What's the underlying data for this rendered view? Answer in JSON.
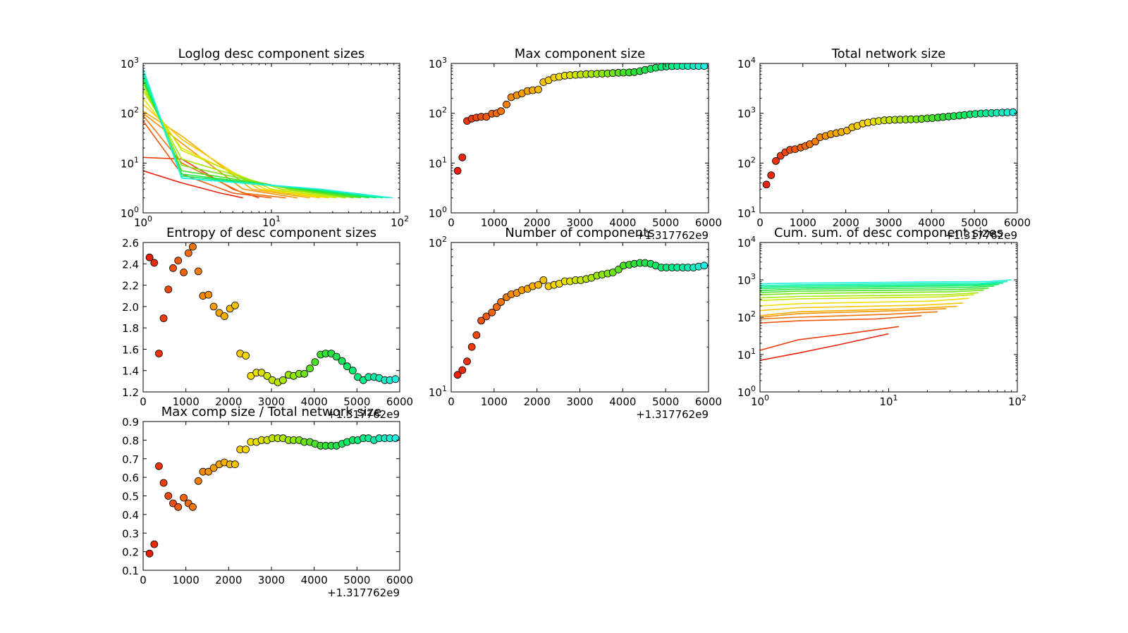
{
  "figure": {
    "offset_text": "+1.317762e9",
    "colors": {
      "ramp": [
        "#e8200c",
        "#f06010",
        "#f8a000",
        "#f6e000",
        "#a0e800",
        "#30e030",
        "#00f080",
        "#20f0e0"
      ],
      "axes": "#000000",
      "background": "#ffffff"
    }
  },
  "chart_data": [
    {
      "id": "loglog",
      "type": "line",
      "title": "Loglog desc component sizes",
      "xlabel": "",
      "ylabel": "",
      "xscale": "log",
      "yscale": "log",
      "xlim": [
        1,
        100
      ],
      "ylim": [
        1,
        1000
      ],
      "x_tick_labels": [
        {
          "base": "10",
          "exp": "0"
        },
        {
          "base": "10",
          "exp": "1"
        },
        {
          "base": "10",
          "exp": "2"
        }
      ],
      "y_tick_labels": [
        {
          "base": "10",
          "exp": "0"
        },
        {
          "base": "10",
          "exp": "1"
        },
        {
          "base": "10",
          "exp": "2"
        },
        {
          "base": "10",
          "exp": "3"
        }
      ],
      "series": [
        {
          "x": [
            1,
            2,
            4,
            6
          ],
          "y": [
            7,
            4,
            2.5,
            2
          ]
        },
        {
          "x": [
            1,
            2,
            5,
            8
          ],
          "y": [
            13,
            12,
            3,
            2
          ]
        },
        {
          "x": [
            1,
            2,
            5,
            10
          ],
          "y": [
            70,
            6,
            2.5,
            2
          ]
        },
        {
          "x": [
            1,
            2,
            6,
            13
          ],
          "y": [
            90,
            10,
            2.5,
            2
          ]
        },
        {
          "x": [
            1,
            2,
            6,
            16
          ],
          "y": [
            100,
            25,
            3,
            2
          ]
        },
        {
          "x": [
            1,
            2,
            7,
            20
          ],
          "y": [
            110,
            35,
            3,
            2
          ]
        },
        {
          "x": [
            1,
            2,
            8,
            24
          ],
          "y": [
            150,
            30,
            3,
            2
          ]
        },
        {
          "x": [
            1,
            2,
            9,
            28
          ],
          "y": [
            200,
            20,
            3,
            2
          ]
        },
        {
          "x": [
            1,
            2,
            10,
            32
          ],
          "y": [
            280,
            18,
            3,
            2
          ]
        },
        {
          "x": [
            1,
            2,
            12,
            38
          ],
          "y": [
            330,
            12,
            3,
            2
          ]
        },
        {
          "x": [
            1,
            2,
            14,
            44
          ],
          "y": [
            400,
            9,
            3,
            2
          ]
        },
        {
          "x": [
            1,
            2,
            16,
            50
          ],
          "y": [
            460,
            7,
            3,
            2
          ]
        },
        {
          "x": [
            1,
            2,
            18,
            58
          ],
          "y": [
            520,
            6,
            3,
            2
          ]
        },
        {
          "x": [
            1,
            2,
            20,
            66
          ],
          "y": [
            580,
            5.5,
            3,
            2
          ]
        },
        {
          "x": [
            1,
            2,
            22,
            74
          ],
          "y": [
            640,
            5,
            3,
            2
          ]
        },
        {
          "x": [
            1,
            2,
            23,
            82
          ],
          "y": [
            700,
            5,
            3,
            2
          ]
        },
        {
          "x": [
            1,
            2,
            24,
            88
          ],
          "y": [
            780,
            5,
            3,
            2
          ]
        }
      ]
    },
    {
      "id": "maxcomp",
      "type": "scatter",
      "title": "Max component size",
      "xlabel": "",
      "ylabel": "",
      "yscale": "log",
      "xlim": [
        0,
        6000
      ],
      "ylim": [
        1,
        1000
      ],
      "x_tick_labels": [
        "0",
        "1000",
        "2000",
        "3000",
        "4000",
        "5000",
        "6000"
      ],
      "y_tick_labels": [
        {
          "base": "10",
          "exp": "0"
        },
        {
          "base": "10",
          "exp": "1"
        },
        {
          "base": "10",
          "exp": "2"
        },
        {
          "base": "10",
          "exp": "3"
        }
      ],
      "x": [
        150,
        260,
        370,
        480,
        590,
        700,
        820,
        950,
        1060,
        1160,
        1290,
        1400,
        1530,
        1650,
        1780,
        1900,
        2030,
        2150,
        2270,
        2400,
        2520,
        2650,
        2770,
        2900,
        3020,
        3150,
        3270,
        3400,
        3520,
        3650,
        3770,
        3900,
        4020,
        4150,
        4270,
        4400,
        4520,
        4650,
        4770,
        4900,
        5020,
        5150,
        5270,
        5400,
        5520,
        5650,
        5770,
        5900
      ],
      "y": [
        7,
        13,
        70,
        78,
        82,
        85,
        85,
        98,
        100,
        110,
        150,
        210,
        230,
        250,
        280,
        290,
        300,
        420,
        460,
        520,
        540,
        570,
        580,
        590,
        600,
        610,
        615,
        620,
        625,
        630,
        640,
        650,
        655,
        660,
        670,
        700,
        740,
        780,
        820,
        850,
        870,
        880,
        890,
        890,
        890,
        890,
        890,
        890
      ]
    },
    {
      "id": "totalnet",
      "type": "scatter",
      "title": "Total network size",
      "xlabel": "",
      "ylabel": "",
      "yscale": "log",
      "xlim": [
        0,
        6000
      ],
      "ylim": [
        10,
        10000
      ],
      "x_tick_labels": [
        "0",
        "1000",
        "2000",
        "3000",
        "4000",
        "5000",
        "6000"
      ],
      "y_tick_labels": [
        {
          "base": "10",
          "exp": "1"
        },
        {
          "base": "10",
          "exp": "2"
        },
        {
          "base": "10",
          "exp": "3"
        },
        {
          "base": "10",
          "exp": "4"
        }
      ],
      "x": [
        150,
        260,
        370,
        480,
        590,
        700,
        820,
        950,
        1060,
        1160,
        1290,
        1400,
        1530,
        1650,
        1780,
        1900,
        2030,
        2150,
        2270,
        2400,
        2520,
        2650,
        2770,
        2900,
        3020,
        3150,
        3270,
        3400,
        3520,
        3650,
        3770,
        3900,
        4020,
        4150,
        4270,
        4400,
        4520,
        4650,
        4770,
        4900,
        5020,
        5150,
        5270,
        5400,
        5520,
        5650,
        5770,
        5900
      ],
      "y": [
        37,
        57,
        110,
        140,
        165,
        185,
        190,
        205,
        220,
        240,
        270,
        330,
        350,
        380,
        400,
        420,
        450,
        520,
        560,
        620,
        650,
        680,
        700,
        720,
        730,
        740,
        745,
        750,
        755,
        760,
        770,
        790,
        800,
        820,
        840,
        860,
        880,
        900,
        920,
        950,
        970,
        990,
        1000,
        1010,
        1020,
        1030,
        1040,
        1050
      ]
    },
    {
      "id": "entropy",
      "type": "scatter",
      "title": "Entropy of desc component sizes",
      "xlabel": "",
      "ylabel": "",
      "xlim": [
        0,
        6000
      ],
      "ylim": [
        1.2,
        2.6
      ],
      "x_tick_labels": [
        "0",
        "1000",
        "2000",
        "3000",
        "4000",
        "5000",
        "6000"
      ],
      "y_tick_labels": [
        "1.2",
        "1.4",
        "1.6",
        "1.8",
        "2.0",
        "2.2",
        "2.4",
        "2.6"
      ],
      "x": [
        150,
        260,
        370,
        480,
        590,
        700,
        820,
        950,
        1060,
        1160,
        1290,
        1400,
        1530,
        1650,
        1780,
        1900,
        2030,
        2150,
        2270,
        2400,
        2520,
        2650,
        2770,
        2900,
        3020,
        3150,
        3270,
        3400,
        3520,
        3650,
        3770,
        3900,
        4020,
        4150,
        4270,
        4400,
        4520,
        4650,
        4770,
        4900,
        5020,
        5150,
        5270,
        5400,
        5520,
        5650,
        5770,
        5900
      ],
      "y": [
        2.46,
        2.41,
        1.56,
        1.89,
        2.16,
        2.36,
        2.43,
        2.32,
        2.5,
        2.56,
        2.33,
        2.1,
        2.11,
        2.0,
        1.94,
        1.91,
        1.98,
        2.01,
        1.56,
        1.54,
        1.35,
        1.38,
        1.38,
        1.35,
        1.31,
        1.29,
        1.31,
        1.36,
        1.35,
        1.37,
        1.37,
        1.42,
        1.48,
        1.55,
        1.56,
        1.56,
        1.53,
        1.49,
        1.44,
        1.4,
        1.34,
        1.31,
        1.34,
        1.34,
        1.33,
        1.31,
        1.31,
        1.32
      ]
    },
    {
      "id": "numcomp",
      "type": "scatter",
      "title": "Number of components",
      "xlabel": "",
      "ylabel": "",
      "yscale": "log",
      "xlim": [
        0,
        6000
      ],
      "ylim": [
        10,
        100
      ],
      "x_tick_labels": [
        "0",
        "1000",
        "2000",
        "3000",
        "4000",
        "5000",
        "6000"
      ],
      "y_tick_labels": [
        {
          "base": "10",
          "exp": "1"
        },
        {
          "base": "10",
          "exp": "2"
        }
      ],
      "x": [
        150,
        260,
        370,
        480,
        590,
        700,
        820,
        950,
        1060,
        1160,
        1290,
        1400,
        1530,
        1650,
        1780,
        1900,
        2030,
        2150,
        2270,
        2400,
        2520,
        2650,
        2770,
        2900,
        3020,
        3150,
        3270,
        3400,
        3520,
        3650,
        3770,
        3900,
        4020,
        4150,
        4270,
        4400,
        4520,
        4650,
        4770,
        4900,
        5020,
        5150,
        5270,
        5400,
        5520,
        5650,
        5770,
        5900
      ],
      "y": [
        13,
        14,
        16,
        20,
        24,
        30,
        32,
        34,
        37,
        40,
        43,
        45,
        46,
        48,
        49,
        51,
        52,
        56,
        51,
        52,
        53,
        55,
        55,
        56,
        56,
        57,
        58,
        60,
        61,
        62,
        63,
        66,
        70,
        71,
        72,
        73,
        73,
        72,
        70,
        68,
        68,
        68,
        68,
        68,
        68,
        68,
        69,
        70
      ]
    },
    {
      "id": "cumsum",
      "type": "line",
      "title": "Cum. sum. of desc component sizes",
      "xlabel": "",
      "ylabel": "",
      "xscale": "log",
      "yscale": "log",
      "xlim": [
        1,
        100
      ],
      "ylim": [
        1,
        10000
      ],
      "x_tick_labels": [
        {
          "base": "10",
          "exp": "0"
        },
        {
          "base": "10",
          "exp": "1"
        },
        {
          "base": "10",
          "exp": "2"
        }
      ],
      "y_tick_labels": [
        {
          "base": "10",
          "exp": "0"
        },
        {
          "base": "10",
          "exp": "1"
        },
        {
          "base": "10",
          "exp": "2"
        },
        {
          "base": "10",
          "exp": "3"
        },
        {
          "base": "10",
          "exp": "4"
        }
      ],
      "series": [
        {
          "x": [
            1,
            2,
            4,
            10
          ],
          "y": [
            7,
            11,
            18,
            36
          ]
        },
        {
          "x": [
            1,
            2,
            5,
            12
          ],
          "y": [
            13,
            25,
            37,
            56
          ]
        },
        {
          "x": [
            1,
            2,
            8,
            18
          ],
          "y": [
            70,
            80,
            90,
            110
          ]
        },
        {
          "x": [
            1,
            2,
            10,
            24
          ],
          "y": [
            90,
            100,
            120,
            140
          ]
        },
        {
          "x": [
            1,
            2,
            12,
            28
          ],
          "y": [
            100,
            125,
            150,
            170
          ]
        },
        {
          "x": [
            1,
            2,
            15,
            34
          ],
          "y": [
            110,
            140,
            170,
            195
          ]
        },
        {
          "x": [
            1,
            2,
            18,
            38
          ],
          "y": [
            150,
            180,
            210,
            240
          ]
        },
        {
          "x": [
            1,
            2,
            22,
            42
          ],
          "y": [
            200,
            230,
            270,
            320
          ]
        },
        {
          "x": [
            1,
            2,
            25,
            46
          ],
          "y": [
            280,
            310,
            350,
            400
          ]
        },
        {
          "x": [
            1,
            2,
            28,
            50
          ],
          "y": [
            330,
            360,
            400,
            450
          ]
        },
        {
          "x": [
            1,
            2,
            32,
            55
          ],
          "y": [
            400,
            430,
            480,
            530
          ]
        },
        {
          "x": [
            1,
            2,
            36,
            60
          ],
          "y": [
            460,
            500,
            550,
            600
          ]
        },
        {
          "x": [
            1,
            2,
            40,
            66
          ],
          "y": [
            520,
            560,
            620,
            680
          ]
        },
        {
          "x": [
            1,
            2,
            45,
            72
          ],
          "y": [
            580,
            620,
            690,
            750
          ]
        },
        {
          "x": [
            1,
            2,
            50,
            78
          ],
          "y": [
            640,
            680,
            750,
            820
          ]
        },
        {
          "x": [
            1,
            2,
            55,
            84
          ],
          "y": [
            700,
            740,
            820,
            900
          ]
        },
        {
          "x": [
            1,
            2,
            60,
            90
          ],
          "y": [
            780,
            820,
            900,
            1000
          ]
        }
      ]
    },
    {
      "id": "ratio",
      "type": "scatter",
      "title": "Max comp size / Total network size",
      "xlabel": "",
      "ylabel": "",
      "xlim": [
        0,
        6000
      ],
      "ylim": [
        0.1,
        0.9
      ],
      "x_tick_labels": [
        "0",
        "1000",
        "2000",
        "3000",
        "4000",
        "5000",
        "6000"
      ],
      "y_tick_labels": [
        "0.1",
        "0.2",
        "0.3",
        "0.4",
        "0.5",
        "0.6",
        "0.7",
        "0.8",
        "0.9"
      ],
      "x": [
        150,
        260,
        370,
        480,
        590,
        700,
        820,
        950,
        1060,
        1160,
        1290,
        1400,
        1530,
        1650,
        1780,
        1900,
        2030,
        2150,
        2270,
        2400,
        2520,
        2650,
        2770,
        2900,
        3020,
        3150,
        3270,
        3400,
        3520,
        3650,
        3770,
        3900,
        4020,
        4150,
        4270,
        4400,
        4520,
        4650,
        4770,
        4900,
        5020,
        5150,
        5270,
        5400,
        5520,
        5650,
        5770,
        5900
      ],
      "y": [
        0.19,
        0.24,
        0.66,
        0.57,
        0.5,
        0.46,
        0.44,
        0.49,
        0.46,
        0.44,
        0.58,
        0.63,
        0.63,
        0.65,
        0.67,
        0.68,
        0.67,
        0.67,
        0.75,
        0.75,
        0.79,
        0.79,
        0.8,
        0.8,
        0.81,
        0.81,
        0.81,
        0.8,
        0.8,
        0.8,
        0.79,
        0.79,
        0.78,
        0.77,
        0.77,
        0.77,
        0.77,
        0.78,
        0.79,
        0.8,
        0.8,
        0.81,
        0.81,
        0.8,
        0.81,
        0.81,
        0.81,
        0.81
      ]
    }
  ]
}
